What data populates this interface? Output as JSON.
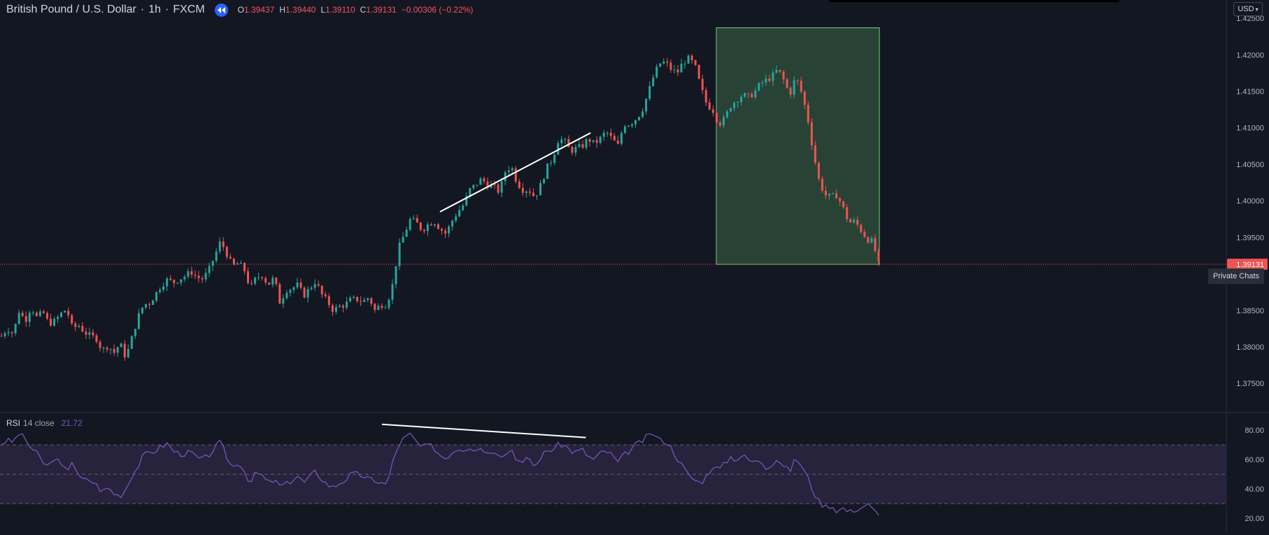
{
  "header": {
    "symbol": "British Pound / U.S. Dollar",
    "interval": "1h",
    "exchange": "FXCM",
    "open_label": "O",
    "open": "1.39437",
    "high_label": "H",
    "high": "1.39440",
    "low_label": "L",
    "low": "1.39110",
    "close_label": "C",
    "close": "1.39131",
    "change": "−0.00306 (−0.22%)"
  },
  "currency_button": "USD",
  "last_price_label": "1.39131",
  "tooltip": "Private Chats",
  "rsi_legend": {
    "name": "RSI",
    "params": "14 close",
    "value": "21.72"
  },
  "colors": {
    "background": "#131722",
    "up": "#26a69a",
    "down": "#ef5350",
    "rsi_line": "#7e57c2",
    "rsi_band": "#2a2540",
    "target_box": "#2e4a3a",
    "trendline": "#ffffff",
    "last_price_line": "#ef5350"
  },
  "chart_data": [
    {
      "type": "candlestick",
      "title": "British Pound / U.S. Dollar · 1h · FXCM",
      "ylim": [
        1.371,
        1.4275
      ],
      "yticks": [
        1.375,
        1.38,
        1.385,
        1.39,
        1.395,
        1.4,
        1.405,
        1.41,
        1.415,
        1.42,
        1.425
      ],
      "ytick_labels": [
        "1.37500",
        "1.38000",
        "1.38500",
        "1.39000",
        "1.39500",
        "1.40000",
        "1.40500",
        "1.41000",
        "1.41500",
        "1.42000",
        "1.42500"
      ],
      "candle_count": 250,
      "close_path": [
        [
          0,
          1.3815
        ],
        [
          5,
          1.3825
        ],
        [
          10,
          1.3818
        ],
        [
          15,
          1.385
        ],
        [
          20,
          1.3835
        ],
        [
          25,
          1.3855
        ],
        [
          30,
          1.384
        ],
        [
          35,
          1.3848
        ],
        [
          40,
          1.3832
        ],
        [
          45,
          1.3835
        ],
        [
          50,
          1.3845
        ],
        [
          55,
          1.3852
        ],
        [
          60,
          1.3825
        ],
        [
          65,
          1.383
        ],
        [
          70,
          1.382
        ],
        [
          75,
          1.3815
        ],
        [
          80,
          1.3812
        ],
        [
          85,
          1.3795
        ],
        [
          90,
          1.3802
        ],
        [
          95,
          1.3792
        ],
        [
          100,
          1.3805
        ],
        [
          105,
          1.3785
        ],
        [
          110,
          1.3812
        ],
        [
          115,
          1.384
        ],
        [
          120,
          1.3858
        ],
        [
          125,
          1.386
        ],
        [
          130,
          1.3872
        ],
        [
          135,
          1.3885
        ],
        [
          140,
          1.3892
        ],
        [
          145,
          1.3888
        ],
        [
          150,
          1.3893
        ],
        [
          155,
          1.3897
        ],
        [
          160,
          1.3903
        ],
        [
          165,
          1.3895
        ],
        [
          170,
          1.3893
        ],
        [
          175,
          1.3905
        ],
        [
          180,
          1.3925
        ],
        [
          185,
          1.3945
        ],
        [
          190,
          1.3928
        ],
        [
          195,
          1.391
        ],
        [
          200,
          1.3915
        ],
        [
          205,
          1.3905
        ],
        [
          210,
          1.388
        ],
        [
          215,
          1.3895
        ],
        [
          220,
          1.3898
        ],
        [
          225,
          1.3885
        ],
        [
          230,
          1.3895
        ],
        [
          235,
          1.386
        ],
        [
          240,
          1.3878
        ],
        [
          245,
          1.388
        ],
        [
          250,
          1.3885
        ],
        [
          255,
          1.387
        ],
        [
          260,
          1.388
        ],
        [
          265,
          1.389
        ],
        [
          270,
          1.3872
        ],
        [
          275,
          1.3862
        ],
        [
          280,
          1.385
        ],
        [
          285,
          1.3855
        ],
        [
          290,
          1.3858
        ],
        [
          295,
          1.3865
        ],
        [
          300,
          1.3865
        ],
        [
          305,
          1.3862
        ],
        [
          310,
          1.3868
        ],
        [
          315,
          1.385
        ],
        [
          320,
          1.3858
        ],
        [
          325,
          1.3858
        ],
        [
          330,
          1.3885
        ],
        [
          335,
          1.3935
        ],
        [
          340,
          1.3955
        ],
        [
          345,
          1.3975
        ],
        [
          350,
          1.397
        ],
        [
          355,
          1.396
        ],
        [
          360,
          1.3968
        ],
        [
          365,
          1.3972
        ],
        [
          370,
          1.3962
        ],
        [
          375,
          1.3955
        ],
        [
          380,
          1.3972
        ],
        [
          385,
          1.3985
        ],
        [
          390,
          1.3995
        ],
        [
          395,
          1.4015
        ],
        [
          400,
          1.4022
        ],
        [
          405,
          1.403
        ],
        [
          410,
          1.4022
        ],
        [
          415,
          1.402
        ],
        [
          420,
          1.4012
        ],
        [
          425,
          1.404
        ],
        [
          430,
          1.4048
        ],
        [
          435,
          1.4025
        ],
        [
          440,
          1.4015
        ],
        [
          445,
          1.4015
        ],
        [
          450,
          1.4005
        ],
        [
          455,
          1.4022
        ],
        [
          460,
          1.4045
        ],
        [
          465,
          1.4058
        ],
        [
          470,
          1.4085
        ],
        [
          475,
          1.4082
        ],
        [
          480,
          1.4068
        ],
        [
          485,
          1.4072
        ],
        [
          490,
          1.4075
        ],
        [
          495,
          1.4085
        ],
        [
          500,
          1.4078
        ],
        [
          505,
          1.4085
        ],
        [
          510,
          1.4095
        ],
        [
          515,
          1.4085
        ],
        [
          520,
          1.4075
        ],
        [
          525,
          1.4105
        ],
        [
          530,
          1.4105
        ],
        [
          535,
          1.4112
        ],
        [
          540,
          1.4122
        ],
        [
          545,
          1.4145
        ],
        [
          550,
          1.417
        ],
        [
          555,
          1.4188
        ],
        [
          560,
          1.419
        ],
        [
          565,
          1.418
        ],
        [
          570,
          1.4175
        ],
        [
          575,
          1.419
        ],
        [
          580,
          1.4195
        ],
        [
          585,
          1.4185
        ],
        [
          590,
          1.4155
        ],
        [
          595,
          1.4132
        ],
        [
          600,
          1.4125
        ],
        [
          605,
          1.4105
        ],
        [
          610,
          1.4112
        ],
        [
          615,
          1.413
        ],
        [
          620,
          1.4138
        ],
        [
          625,
          1.4145
        ],
        [
          630,
          1.4142
        ],
        [
          635,
          1.4148
        ],
        [
          640,
          1.416
        ],
        [
          645,
          1.4165
        ],
        [
          650,
          1.417
        ],
        [
          655,
          1.418
        ],
        [
          660,
          1.4165
        ],
        [
          665,
          1.4145
        ],
        [
          670,
          1.417
        ],
        [
          675,
          1.4148
        ],
        [
          680,
          1.4115
        ],
        [
          685,
          1.4065
        ],
        [
          690,
          1.4025
        ],
        [
          695,
          1.4008
        ],
        [
          700,
          1.4005
        ],
        [
          705,
          1.4008
        ],
        [
          710,
          1.399
        ],
        [
          715,
          1.397
        ],
        [
          720,
          1.3972
        ],
        [
          725,
          1.396
        ],
        [
          730,
          1.3948
        ],
        [
          735,
          1.3944
        ],
        [
          740,
          1.3913
        ]
      ],
      "target_zone": {
        "price_top": 1.4237,
        "price_bottom": 1.3913,
        "fill": "#2e4a3a",
        "border": "#6fcf7a"
      },
      "trendline": {
        "from": [
          370,
          1.3985
        ],
        "to": [
          497,
          1.4093
        ],
        "color": "#ffffff"
      },
      "last_price": 1.39131
    },
    {
      "type": "line",
      "title": "RSI 14 close",
      "ylim": [
        11.0,
        92.0
      ],
      "yticks": [
        20,
        40,
        60,
        80
      ],
      "ytick_labels": [
        "20.00",
        "40.00",
        "60.00",
        "80.00"
      ],
      "band": [
        30,
        70
      ],
      "midline": 50,
      "last_value": 21.72,
      "values_path": [
        [
          0,
          71
        ],
        [
          5,
          73
        ],
        [
          10,
          72
        ],
        [
          15,
          78
        ],
        [
          20,
          74
        ],
        [
          25,
          68
        ],
        [
          30,
          64
        ],
        [
          35,
          58
        ],
        [
          40,
          55
        ],
        [
          45,
          62
        ],
        [
          50,
          56
        ],
        [
          55,
          52
        ],
        [
          60,
          60
        ],
        [
          65,
          48
        ],
        [
          70,
          46
        ],
        [
          75,
          46
        ],
        [
          80,
          43
        ],
        [
          85,
          38
        ],
        [
          90,
          41
        ],
        [
          95,
          37
        ],
        [
          100,
          35
        ],
        [
          105,
          40
        ],
        [
          110,
          49
        ],
        [
          115,
          55
        ],
        [
          120,
          63
        ],
        [
          125,
          65
        ],
        [
          130,
          66
        ],
        [
          135,
          69
        ],
        [
          140,
          71
        ],
        [
          145,
          66
        ],
        [
          150,
          64
        ],
        [
          155,
          64
        ],
        [
          160,
          65
        ],
        [
          165,
          61
        ],
        [
          170,
          60
        ],
        [
          175,
          63
        ],
        [
          180,
          68
        ],
        [
          185,
          72
        ],
        [
          190,
          62
        ],
        [
          195,
          54
        ],
        [
          200,
          59
        ],
        [
          205,
          52
        ],
        [
          210,
          44
        ],
        [
          215,
          51
        ],
        [
          220,
          49
        ],
        [
          225,
          44
        ],
        [
          230,
          46
        ],
        [
          235,
          42
        ],
        [
          240,
          43
        ],
        [
          245,
          46
        ],
        [
          250,
          49
        ],
        [
          255,
          44
        ],
        [
          260,
          48
        ],
        [
          265,
          52
        ],
        [
          270,
          47
        ],
        [
          275,
          43
        ],
        [
          280,
          41
        ],
        [
          285,
          44
        ],
        [
          290,
          46
        ],
        [
          295,
          50
        ],
        [
          300,
          50
        ],
        [
          305,
          49
        ],
        [
          310,
          47
        ],
        [
          315,
          44
        ],
        [
          320,
          46
        ],
        [
          325,
          42
        ],
        [
          330,
          58
        ],
        [
          335,
          70
        ],
        [
          340,
          75
        ],
        [
          345,
          77
        ],
        [
          350,
          72
        ],
        [
          355,
          68
        ],
        [
          360,
          70
        ],
        [
          365,
          68
        ],
        [
          370,
          63
        ],
        [
          375,
          61
        ],
        [
          380,
          65
        ],
        [
          385,
          68
        ],
        [
          390,
          67
        ],
        [
          395,
          69
        ],
        [
          400,
          66
        ],
        [
          405,
          69
        ],
        [
          410,
          64
        ],
        [
          415,
          67
        ],
        [
          420,
          64
        ],
        [
          425,
          63
        ],
        [
          430,
          68
        ],
        [
          435,
          60
        ],
        [
          440,
          57
        ],
        [
          445,
          62
        ],
        [
          450,
          54
        ],
        [
          455,
          62
        ],
        [
          460,
          66
        ],
        [
          465,
          67
        ],
        [
          470,
          70
        ],
        [
          475,
          70
        ],
        [
          480,
          66
        ],
        [
          485,
          65
        ],
        [
          490,
          67
        ],
        [
          495,
          62
        ],
        [
          500,
          60
        ],
        [
          505,
          64
        ],
        [
          510,
          66
        ],
        [
          515,
          63
        ],
        [
          520,
          58
        ],
        [
          525,
          63
        ],
        [
          530,
          66
        ],
        [
          535,
          70
        ],
        [
          540,
          72
        ],
        [
          545,
          76
        ],
        [
          550,
          78
        ],
        [
          555,
          73
        ],
        [
          560,
          73
        ],
        [
          565,
          68
        ],
        [
          570,
          61
        ],
        [
          575,
          55
        ],
        [
          580,
          49
        ],
        [
          585,
          46
        ],
        [
          590,
          44
        ],
        [
          595,
          49
        ],
        [
          600,
          56
        ],
        [
          605,
          53
        ],
        [
          610,
          57
        ],
        [
          615,
          62
        ],
        [
          620,
          60
        ],
        [
          625,
          63
        ],
        [
          630,
          60
        ],
        [
          635,
          58
        ],
        [
          640,
          60
        ],
        [
          645,
          55
        ],
        [
          650,
          57
        ],
        [
          655,
          61
        ],
        [
          660,
          55
        ],
        [
          665,
          52
        ],
        [
          670,
          61
        ],
        [
          675,
          56
        ],
        [
          680,
          48
        ],
        [
          685,
          38
        ],
        [
          690,
          31
        ],
        [
          695,
          28
        ],
        [
          700,
          29
        ],
        [
          705,
          25
        ],
        [
          710,
          27
        ],
        [
          715,
          24
        ],
        [
          720,
          26
        ],
        [
          725,
          27
        ],
        [
          730,
          30
        ],
        [
          735,
          26
        ],
        [
          740,
          22
        ]
      ],
      "trendline": {
        "from": [
          321,
          84.0
        ],
        "to": [
          493,
          75.0
        ],
        "color": "#ffffff"
      }
    }
  ]
}
